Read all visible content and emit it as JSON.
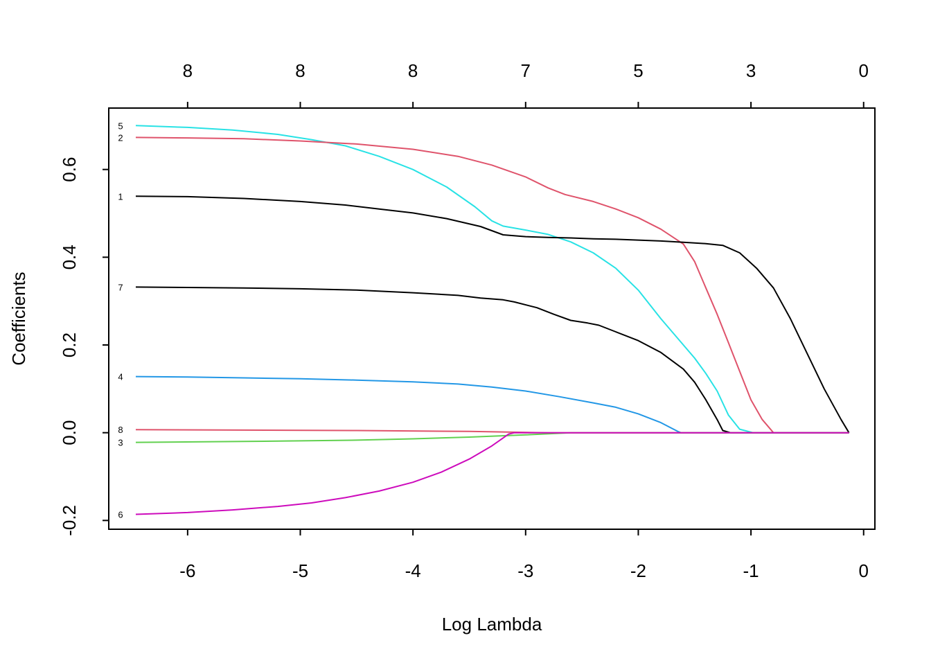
{
  "chart_data": {
    "type": "line",
    "xlabel": "Log Lambda",
    "ylabel": "Coefficients",
    "xlim": [
      -6.7,
      0.1
    ],
    "ylim": [
      -0.22,
      0.74
    ],
    "x_ticks": [
      -6,
      -5,
      -4,
      -3,
      -2,
      -1,
      0
    ],
    "x_tick_labels": [
      "-6",
      "-5",
      "-4",
      "-3",
      "-2",
      "-1",
      "0"
    ],
    "y_ticks": [
      -0.2,
      0.0,
      0.2,
      0.4,
      0.6
    ],
    "y_tick_labels": [
      "-0.2",
      "0.0",
      "0.2",
      "0.4",
      "0.6"
    ],
    "top_axis": {
      "ticks": [
        -6,
        -5,
        -4,
        -3,
        -2,
        -1,
        0
      ],
      "labels": [
        "8",
        "8",
        "8",
        "7",
        "5",
        "3",
        "0"
      ]
    },
    "grid": false,
    "series": [
      {
        "name": "5",
        "color": "#28E2E5",
        "points": [
          [
            -6.46,
            0.7
          ],
          [
            -6.0,
            0.696
          ],
          [
            -5.6,
            0.69
          ],
          [
            -5.2,
            0.68
          ],
          [
            -4.9,
            0.668
          ],
          [
            -4.6,
            0.654
          ],
          [
            -4.3,
            0.63
          ],
          [
            -4.0,
            0.6
          ],
          [
            -3.7,
            0.56
          ],
          [
            -3.45,
            0.515
          ],
          [
            -3.3,
            0.483
          ],
          [
            -3.2,
            0.471
          ],
          [
            -3.0,
            0.462
          ],
          [
            -2.8,
            0.452
          ],
          [
            -2.6,
            0.435
          ],
          [
            -2.4,
            0.41
          ],
          [
            -2.2,
            0.375
          ],
          [
            -2.0,
            0.325
          ],
          [
            -1.8,
            0.26
          ],
          [
            -1.65,
            0.215
          ],
          [
            -1.5,
            0.17
          ],
          [
            -1.4,
            0.135
          ],
          [
            -1.3,
            0.095
          ],
          [
            -1.2,
            0.04
          ],
          [
            -1.1,
            0.008
          ],
          [
            -0.98,
            0.0
          ],
          [
            -0.13,
            0.0
          ]
        ]
      },
      {
        "name": "2",
        "color": "#DF536B",
        "points": [
          [
            -6.46,
            0.673
          ],
          [
            -6.0,
            0.672
          ],
          [
            -5.5,
            0.67
          ],
          [
            -5.0,
            0.665
          ],
          [
            -4.5,
            0.658
          ],
          [
            -4.0,
            0.646
          ],
          [
            -3.6,
            0.63
          ],
          [
            -3.3,
            0.61
          ],
          [
            -3.0,
            0.583
          ],
          [
            -2.8,
            0.558
          ],
          [
            -2.65,
            0.543
          ],
          [
            -2.4,
            0.527
          ],
          [
            -2.2,
            0.51
          ],
          [
            -2.0,
            0.49
          ],
          [
            -1.8,
            0.464
          ],
          [
            -1.6,
            0.43
          ],
          [
            -1.5,
            0.39
          ],
          [
            -1.4,
            0.33
          ],
          [
            -1.3,
            0.27
          ],
          [
            -1.2,
            0.205
          ],
          [
            -1.1,
            0.14
          ],
          [
            -1.0,
            0.075
          ],
          [
            -0.9,
            0.03
          ],
          [
            -0.8,
            0.0
          ],
          [
            -0.13,
            0.0
          ]
        ]
      },
      {
        "name": "1",
        "color": "#000000",
        "points": [
          [
            -6.46,
            0.539
          ],
          [
            -6.0,
            0.538
          ],
          [
            -5.5,
            0.534
          ],
          [
            -5.0,
            0.527
          ],
          [
            -4.6,
            0.519
          ],
          [
            -4.3,
            0.51
          ],
          [
            -4.0,
            0.501
          ],
          [
            -3.7,
            0.488
          ],
          [
            -3.4,
            0.47
          ],
          [
            -3.2,
            0.451
          ],
          [
            -3.0,
            0.447
          ],
          [
            -2.8,
            0.445
          ],
          [
            -2.6,
            0.444
          ],
          [
            -2.4,
            0.442
          ],
          [
            -2.2,
            0.441
          ],
          [
            -2.0,
            0.439
          ],
          [
            -1.8,
            0.437
          ],
          [
            -1.6,
            0.434
          ],
          [
            -1.4,
            0.431
          ],
          [
            -1.25,
            0.427
          ],
          [
            -1.1,
            0.41
          ],
          [
            -0.95,
            0.375
          ],
          [
            -0.8,
            0.33
          ],
          [
            -0.65,
            0.26
          ],
          [
            -0.5,
            0.18
          ],
          [
            -0.35,
            0.1
          ],
          [
            -0.2,
            0.03
          ],
          [
            -0.13,
            0.0
          ]
        ]
      },
      {
        "name": "7",
        "color": "#000000",
        "points": [
          [
            -6.46,
            0.332
          ],
          [
            -6.0,
            0.331
          ],
          [
            -5.5,
            0.33
          ],
          [
            -5.0,
            0.328
          ],
          [
            -4.5,
            0.325
          ],
          [
            -4.0,
            0.319
          ],
          [
            -3.6,
            0.313
          ],
          [
            -3.4,
            0.307
          ],
          [
            -3.2,
            0.303
          ],
          [
            -3.1,
            0.298
          ],
          [
            -2.9,
            0.285
          ],
          [
            -2.75,
            0.27
          ],
          [
            -2.6,
            0.256
          ],
          [
            -2.45,
            0.25
          ],
          [
            -2.35,
            0.245
          ],
          [
            -2.2,
            0.23
          ],
          [
            -2.0,
            0.21
          ],
          [
            -1.8,
            0.183
          ],
          [
            -1.6,
            0.145
          ],
          [
            -1.5,
            0.115
          ],
          [
            -1.4,
            0.075
          ],
          [
            -1.3,
            0.03
          ],
          [
            -1.25,
            0.005
          ],
          [
            -1.18,
            0.0
          ],
          [
            -0.13,
            0.0
          ]
        ]
      },
      {
        "name": "4",
        "color": "#2297E6",
        "points": [
          [
            -6.46,
            0.128
          ],
          [
            -6.0,
            0.127
          ],
          [
            -5.5,
            0.125
          ],
          [
            -5.0,
            0.123
          ],
          [
            -4.5,
            0.12
          ],
          [
            -4.0,
            0.116
          ],
          [
            -3.6,
            0.111
          ],
          [
            -3.3,
            0.104
          ],
          [
            -3.0,
            0.095
          ],
          [
            -2.7,
            0.082
          ],
          [
            -2.4,
            0.068
          ],
          [
            -2.2,
            0.058
          ],
          [
            -2.0,
            0.043
          ],
          [
            -1.8,
            0.023
          ],
          [
            -1.65,
            0.003
          ],
          [
            -1.62,
            0.0
          ],
          [
            -0.13,
            0.0
          ]
        ]
      },
      {
        "name": "8",
        "color": "#DF536B",
        "points": [
          [
            -6.46,
            0.007
          ],
          [
            -5.5,
            0.006
          ],
          [
            -4.5,
            0.005
          ],
          [
            -3.5,
            0.003
          ],
          [
            -2.8,
            0.0
          ],
          [
            -0.13,
            0.0
          ]
        ]
      },
      {
        "name": "3",
        "color": "#61D04F",
        "points": [
          [
            -6.46,
            -0.022
          ],
          [
            -5.5,
            -0.02
          ],
          [
            -4.5,
            -0.017
          ],
          [
            -4.0,
            -0.014
          ],
          [
            -3.5,
            -0.01
          ],
          [
            -3.0,
            -0.005
          ],
          [
            -2.6,
            0.0
          ],
          [
            -0.13,
            0.0
          ]
        ]
      },
      {
        "name": "6",
        "color": "#CD0BBC",
        "points": [
          [
            -6.46,
            -0.186
          ],
          [
            -6.0,
            -0.182
          ],
          [
            -5.6,
            -0.176
          ],
          [
            -5.2,
            -0.168
          ],
          [
            -4.9,
            -0.16
          ],
          [
            -4.6,
            -0.148
          ],
          [
            -4.3,
            -0.133
          ],
          [
            -4.0,
            -0.113
          ],
          [
            -3.75,
            -0.09
          ],
          [
            -3.5,
            -0.06
          ],
          [
            -3.3,
            -0.03
          ],
          [
            -3.15,
            -0.003
          ],
          [
            -3.1,
            0.0
          ],
          [
            -0.13,
            0.0
          ]
        ]
      }
    ],
    "label_x": -6.46
  }
}
